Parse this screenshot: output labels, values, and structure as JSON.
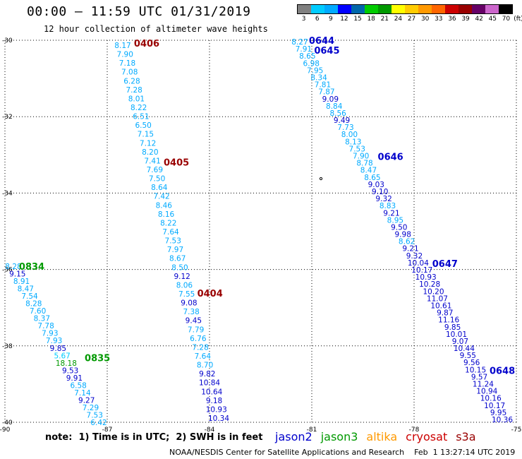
{
  "header": {
    "title": "00:00 – 11:59 UTC 01/31/2019",
    "subtitle": "12 hour collection of altimeter wave heights"
  },
  "legend": {
    "unit": "(ft)",
    "labels": [
      "3",
      "6",
      "9",
      "12",
      "15",
      "18",
      "21",
      "24",
      "27",
      "30",
      "33",
      "36",
      "39",
      "42",
      "45",
      "70"
    ],
    "colors": [
      "#808080",
      "#00ccff",
      "#00aaff",
      "#0000ff",
      "#0066aa",
      "#00cc00",
      "#009900",
      "#ffff00",
      "#ffcc00",
      "#ff9900",
      "#ff6600",
      "#cc0000",
      "#990000",
      "#660066",
      "#cc66cc",
      "#000000"
    ]
  },
  "map": {
    "lon_ticks": [
      "-90",
      "-87",
      "-84",
      "-81",
      "-78",
      "-75"
    ],
    "lat_ticks": [
      "-30",
      "-32",
      "-34",
      "-36",
      "-38",
      "-40"
    ],
    "lon_range": [
      -90,
      -75
    ],
    "lat_range": [
      -30,
      -40
    ],
    "passes": [
      {
        "track": "pass-0406",
        "points": [
          {
            "t": "8.17",
            "c": "#00aaff"
          },
          {
            "t": "7.90",
            "c": "#00aaff"
          },
          {
            "t": "7.18",
            "c": "#00aaff"
          },
          {
            "t": "7.08",
            "c": "#00aaff"
          },
          {
            "t": "6.28",
            "c": "#00aaff"
          },
          {
            "t": "7.28",
            "c": "#00aaff"
          },
          {
            "t": "8.01",
            "c": "#00aaff"
          },
          {
            "t": "8.22",
            "c": "#00aaff"
          },
          {
            "t": "6.51",
            "c": "#00aaff"
          },
          {
            "t": "6.50",
            "c": "#00aaff"
          },
          {
            "t": "7.15",
            "c": "#00aaff"
          },
          {
            "t": "7.12",
            "c": "#00aaff"
          },
          {
            "t": "8.20",
            "c": "#00aaff"
          },
          {
            "t": "7.41",
            "c": "#00aaff"
          },
          {
            "t": "7.69",
            "c": "#00aaff"
          },
          {
            "t": "7.50",
            "c": "#00aaff"
          },
          {
            "t": "8.64",
            "c": "#00aaff"
          },
          {
            "t": "7.42",
            "c": "#00aaff"
          },
          {
            "t": "8.46",
            "c": "#00aaff"
          },
          {
            "t": "8.16",
            "c": "#00aaff"
          },
          {
            "t": "8.22",
            "c": "#00aaff"
          },
          {
            "t": "7.64",
            "c": "#00aaff"
          },
          {
            "t": "7.53",
            "c": "#00aaff"
          },
          {
            "t": "7.97",
            "c": "#00aaff"
          },
          {
            "t": "8.67",
            "c": "#00aaff"
          },
          {
            "t": "8.50",
            "c": "#00aaff"
          },
          {
            "t": "9.12",
            "c": "#0000cc"
          },
          {
            "t": "8.06",
            "c": "#00aaff"
          },
          {
            "t": "7.55",
            "c": "#00aaff"
          },
          {
            "t": "9.08",
            "c": "#0000cc"
          },
          {
            "t": "7.38",
            "c": "#00aaff"
          },
          {
            "t": "9.45",
            "c": "#0000cc"
          },
          {
            "t": "7.79",
            "c": "#00aaff"
          },
          {
            "t": "6.76",
            "c": "#00aaff"
          },
          {
            "t": "7.28",
            "c": "#00aaff"
          },
          {
            "t": "7.64",
            "c": "#00aaff"
          },
          {
            "t": "8.70",
            "c": "#00aaff"
          },
          {
            "t": "9.82",
            "c": "#0000cc"
          },
          {
            "t": "10.84",
            "c": "#0000cc"
          },
          {
            "t": "10.64",
            "c": "#0000cc"
          },
          {
            "t": "9.18",
            "c": "#0000cc"
          },
          {
            "t": "10.93",
            "c": "#0000cc"
          },
          {
            "t": "10.34",
            "c": "#0000cc"
          }
        ],
        "labels": [
          {
            "t": "0406",
            "c": "#990000",
            "i": 0
          },
          {
            "t": "0405",
            "c": "#990000",
            "i": 13
          },
          {
            "t": "0404",
            "c": "#990000",
            "i": 28
          }
        ]
      },
      {
        "track": "pass-0834",
        "points": [
          {
            "t": "8.28",
            "c": "#00aaff"
          },
          {
            "t": "9.15",
            "c": "#0000cc"
          },
          {
            "t": "8.91",
            "c": "#00aaff"
          },
          {
            "t": "8.47",
            "c": "#00aaff"
          },
          {
            "t": "7.54",
            "c": "#00aaff"
          },
          {
            "t": "8.28",
            "c": "#00aaff"
          },
          {
            "t": "7.60",
            "c": "#00aaff"
          },
          {
            "t": "8.37",
            "c": "#00aaff"
          },
          {
            "t": "7.78",
            "c": "#00aaff"
          },
          {
            "t": "7.93",
            "c": "#00aaff"
          },
          {
            "t": "7.93",
            "c": "#00aaff"
          },
          {
            "t": "9.85",
            "c": "#0000cc"
          },
          {
            "t": "5.67",
            "c": "#00ccff"
          },
          {
            "t": "18.18",
            "c": "#009900"
          },
          {
            "t": "9.53",
            "c": "#0000cc"
          },
          {
            "t": "9.91",
            "c": "#0000cc"
          },
          {
            "t": "6.58",
            "c": "#00aaff"
          },
          {
            "t": "7.14",
            "c": "#00aaff"
          },
          {
            "t": "9.27",
            "c": "#0000cc"
          },
          {
            "t": "7.29",
            "c": "#00aaff"
          },
          {
            "t": "7.53",
            "c": "#00aaff"
          },
          {
            "t": "6.42",
            "c": "#00aaff"
          }
        ],
        "labels": [
          {
            "t": "0834",
            "c": "#009900",
            "i": 0
          },
          {
            "t": "0835",
            "c": "#009900",
            "i": 12
          }
        ]
      },
      {
        "track": "pass-0644",
        "points": [
          {
            "t": "8.27",
            "c": "#00aaff"
          },
          {
            "t": "7.91",
            "c": "#00aaff"
          },
          {
            "t": "8.65",
            "c": "#00aaff"
          },
          {
            "t": "6.98",
            "c": "#00aaff"
          },
          {
            "t": "7.95",
            "c": "#00aaff"
          },
          {
            "t": "8.34",
            "c": "#00aaff"
          },
          {
            "t": "7.81",
            "c": "#00aaff"
          },
          {
            "t": "7.87",
            "c": "#00aaff"
          },
          {
            "t": "9.09",
            "c": "#0000cc"
          },
          {
            "t": "8.84",
            "c": "#00aaff"
          },
          {
            "t": "8.56",
            "c": "#00aaff"
          },
          {
            "t": "9.49",
            "c": "#0000cc"
          },
          {
            "t": "7.73",
            "c": "#00aaff"
          },
          {
            "t": "8.00",
            "c": "#00aaff"
          },
          {
            "t": "8.13",
            "c": "#00aaff"
          },
          {
            "t": "7.53",
            "c": "#00aaff"
          },
          {
            "t": "7.90",
            "c": "#00aaff"
          },
          {
            "t": "8.78",
            "c": "#00aaff"
          },
          {
            "t": "8.47",
            "c": "#00aaff"
          },
          {
            "t": "8.65",
            "c": "#00aaff"
          },
          {
            "t": "9.03",
            "c": "#0000cc"
          },
          {
            "t": "9.10",
            "c": "#0000cc"
          },
          {
            "t": "9.32",
            "c": "#0000cc"
          },
          {
            "t": "8.83",
            "c": "#00aaff"
          },
          {
            "t": "9.21",
            "c": "#0000cc"
          },
          {
            "t": "8.95",
            "c": "#00aaff"
          },
          {
            "t": "9.50",
            "c": "#0000cc"
          },
          {
            "t": "9.98",
            "c": "#0000cc"
          },
          {
            "t": "8.62",
            "c": "#00aaff"
          },
          {
            "t": "9.21",
            "c": "#0000cc"
          },
          {
            "t": "9.32",
            "c": "#0000cc"
          },
          {
            "t": "10.04",
            "c": "#0000cc"
          },
          {
            "t": "10.17",
            "c": "#0000cc"
          },
          {
            "t": "10.93",
            "c": "#0000cc"
          },
          {
            "t": "10.28",
            "c": "#0000cc"
          },
          {
            "t": "10.20",
            "c": "#0000cc"
          },
          {
            "t": "11.07",
            "c": "#0000cc"
          },
          {
            "t": "10.61",
            "c": "#0000cc"
          },
          {
            "t": "9.87",
            "c": "#0000cc"
          },
          {
            "t": "11.16",
            "c": "#0000cc"
          },
          {
            "t": "9.85",
            "c": "#0000cc"
          },
          {
            "t": "10.01",
            "c": "#0000cc"
          },
          {
            "t": "9.07",
            "c": "#0000cc"
          },
          {
            "t": "10.44",
            "c": "#0000cc"
          },
          {
            "t": "9.55",
            "c": "#0000cc"
          },
          {
            "t": "9.56",
            "c": "#0000cc"
          },
          {
            "t": "10.15",
            "c": "#0000cc"
          },
          {
            "t": "9.57",
            "c": "#0000cc"
          },
          {
            "t": "11.24",
            "c": "#0000cc"
          },
          {
            "t": "10.94",
            "c": "#0000cc"
          },
          {
            "t": "10.16",
            "c": "#0000cc"
          },
          {
            "t": "10.17",
            "c": "#0000cc"
          },
          {
            "t": "9.95",
            "c": "#0000cc"
          },
          {
            "t": "10.36",
            "c": "#0000cc"
          }
        ],
        "labels": [
          {
            "t": "0644",
            "c": "#0000cc",
            "i": 0
          },
          {
            "t": "0645",
            "c": "#0000cc",
            "i": 1
          },
          {
            "t": "0646",
            "c": "#0000cc",
            "i": 16
          },
          {
            "t": "0647",
            "c": "#0000cc",
            "i": 31
          },
          {
            "t": "0648",
            "c": "#0000cc",
            "i": 46
          }
        ]
      }
    ]
  },
  "footer": {
    "note": "note:  1) Time is in UTC;  2) SWH is in feet",
    "satellites": [
      {
        "name": "jason2",
        "color": "#0000cc"
      },
      {
        "name": "jason3",
        "color": "#009900"
      },
      {
        "name": "altika",
        "color": "#ff9900"
      },
      {
        "name": "cryosat",
        "color": "#cc0000"
      },
      {
        "name": "s3a",
        "color": "#990000"
      }
    ],
    "credit": "NOAA/NESDIS Center for Satellite Applications and Research    Feb  1 13:27:14 UTC 2019"
  }
}
